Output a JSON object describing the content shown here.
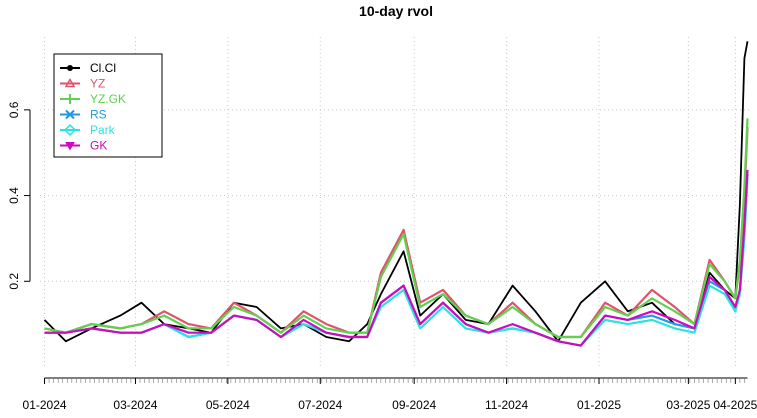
{
  "chart_data": {
    "type": "line",
    "title": "10-day rvol",
    "xlabel": "",
    "ylabel": "",
    "x_range": [
      "2023-12-29",
      "2025-04-12"
    ],
    "ylim": [
      0.0,
      0.77
    ],
    "y_ticks": [
      0.2,
      0.4,
      0.6
    ],
    "y_tick_labels": [
      "0.2",
      "0.4",
      "0.6"
    ],
    "x_ticks": [
      "2024-01-01",
      "2024-03-01",
      "2024-05-01",
      "2024-07-01",
      "2024-09-01",
      "2024-11-01",
      "2025-01-01",
      "2025-03-01",
      "2025-04-01"
    ],
    "x_tick_labels": [
      "01-2024",
      "03-2024",
      "05-2024",
      "07-2024",
      "09-2024",
      "11-2024",
      "01-2025",
      "03-2025",
      "04-2025"
    ],
    "grid": true,
    "legend_position": "top-left",
    "series": [
      {
        "name": "Cl.Cl",
        "color": "#000000",
        "marker": "circle",
        "x": [
          "2024-01-01",
          "2024-01-15",
          "2024-02-01",
          "2024-02-20",
          "2024-03-05",
          "2024-03-20",
          "2024-04-05",
          "2024-04-20",
          "2024-05-05",
          "2024-05-20",
          "2024-06-05",
          "2024-06-20",
          "2024-07-05",
          "2024-07-20",
          "2024-08-01",
          "2024-08-10",
          "2024-08-25",
          "2024-09-05",
          "2024-09-20",
          "2024-10-05",
          "2024-10-20",
          "2024-11-05",
          "2024-11-20",
          "2024-12-05",
          "2024-12-20",
          "2025-01-05",
          "2025-01-20",
          "2025-02-05",
          "2025-02-20",
          "2025-03-05",
          "2025-03-15",
          "2025-03-25",
          "2025-04-01",
          "2025-04-04",
          "2025-04-07",
          "2025-04-09"
        ],
        "y": [
          0.11,
          0.06,
          0.09,
          0.12,
          0.15,
          0.1,
          0.09,
          0.08,
          0.15,
          0.14,
          0.09,
          0.1,
          0.07,
          0.06,
          0.1,
          0.17,
          0.27,
          0.12,
          0.17,
          0.11,
          0.1,
          0.19,
          0.13,
          0.06,
          0.15,
          0.2,
          0.13,
          0.15,
          0.1,
          0.09,
          0.22,
          0.18,
          0.16,
          0.38,
          0.72,
          0.76
        ]
      },
      {
        "name": "YZ",
        "color": "#df536b",
        "marker": "triangle",
        "x": [
          "2024-01-01",
          "2024-01-15",
          "2024-02-01",
          "2024-02-20",
          "2024-03-05",
          "2024-03-20",
          "2024-04-05",
          "2024-04-20",
          "2024-05-05",
          "2024-05-20",
          "2024-06-05",
          "2024-06-20",
          "2024-07-05",
          "2024-07-20",
          "2024-08-01",
          "2024-08-10",
          "2024-08-25",
          "2024-09-05",
          "2024-09-20",
          "2024-10-05",
          "2024-10-20",
          "2024-11-05",
          "2024-11-20",
          "2024-12-05",
          "2024-12-20",
          "2025-01-05",
          "2025-01-20",
          "2025-02-05",
          "2025-02-20",
          "2025-03-05",
          "2025-03-15",
          "2025-03-25",
          "2025-04-01",
          "2025-04-04",
          "2025-04-07",
          "2025-04-09"
        ],
        "y": [
          0.09,
          0.08,
          0.1,
          0.09,
          0.1,
          0.13,
          0.1,
          0.09,
          0.15,
          0.12,
          0.08,
          0.13,
          0.1,
          0.08,
          0.08,
          0.22,
          0.32,
          0.15,
          0.18,
          0.12,
          0.1,
          0.15,
          0.1,
          0.07,
          0.07,
          0.15,
          0.12,
          0.18,
          0.14,
          0.1,
          0.25,
          0.2,
          0.16,
          0.24,
          0.4,
          0.56
        ]
      },
      {
        "name": "YZ.GK",
        "color": "#61d04f",
        "marker": "plus",
        "x": [
          "2024-01-01",
          "2024-01-15",
          "2024-02-01",
          "2024-02-20",
          "2024-03-05",
          "2024-03-20",
          "2024-04-05",
          "2024-04-20",
          "2024-05-05",
          "2024-05-20",
          "2024-06-05",
          "2024-06-20",
          "2024-07-05",
          "2024-07-20",
          "2024-08-01",
          "2024-08-10",
          "2024-08-25",
          "2024-09-05",
          "2024-09-20",
          "2024-10-05",
          "2024-10-20",
          "2024-11-05",
          "2024-11-20",
          "2024-12-05",
          "2024-12-20",
          "2025-01-05",
          "2025-01-20",
          "2025-02-05",
          "2025-02-20",
          "2025-03-05",
          "2025-03-15",
          "2025-03-25",
          "2025-04-01",
          "2025-04-04",
          "2025-04-07",
          "2025-04-09"
        ],
        "y": [
          0.09,
          0.08,
          0.1,
          0.09,
          0.1,
          0.12,
          0.09,
          0.09,
          0.14,
          0.12,
          0.08,
          0.12,
          0.09,
          0.08,
          0.08,
          0.21,
          0.31,
          0.14,
          0.17,
          0.12,
          0.1,
          0.14,
          0.1,
          0.07,
          0.07,
          0.14,
          0.12,
          0.16,
          0.13,
          0.1,
          0.24,
          0.2,
          0.16,
          0.25,
          0.42,
          0.58
        ]
      },
      {
        "name": "RS",
        "color": "#2297e6",
        "marker": "cross",
        "x": [
          "2024-01-01",
          "2024-01-15",
          "2024-02-01",
          "2024-02-20",
          "2024-03-05",
          "2024-03-20",
          "2024-04-05",
          "2024-04-20",
          "2024-05-05",
          "2024-05-20",
          "2024-06-05",
          "2024-06-20",
          "2024-07-05",
          "2024-07-20",
          "2024-08-01",
          "2024-08-10",
          "2024-08-25",
          "2024-09-05",
          "2024-09-20",
          "2024-10-05",
          "2024-10-20",
          "2024-11-05",
          "2024-11-20",
          "2024-12-05",
          "2024-12-20",
          "2025-01-05",
          "2025-01-20",
          "2025-02-05",
          "2025-02-20",
          "2025-03-05",
          "2025-03-15",
          "2025-03-25",
          "2025-04-01",
          "2025-04-04",
          "2025-04-07",
          "2025-04-09"
        ],
        "y": [
          0.08,
          0.08,
          0.09,
          0.08,
          0.08,
          0.1,
          0.07,
          0.08,
          0.12,
          0.11,
          0.07,
          0.1,
          0.08,
          0.07,
          0.07,
          0.15,
          0.19,
          0.1,
          0.15,
          0.1,
          0.08,
          0.09,
          0.08,
          0.06,
          0.05,
          0.12,
          0.11,
          0.12,
          0.1,
          0.09,
          0.2,
          0.18,
          0.13,
          0.18,
          0.32,
          0.45
        ]
      },
      {
        "name": "Park",
        "color": "#28e2e5",
        "marker": "diamond",
        "x": [
          "2024-01-01",
          "2024-01-15",
          "2024-02-01",
          "2024-02-20",
          "2024-03-05",
          "2024-03-20",
          "2024-04-05",
          "2024-04-20",
          "2024-05-05",
          "2024-05-20",
          "2024-06-05",
          "2024-06-20",
          "2024-07-05",
          "2024-07-20",
          "2024-08-01",
          "2024-08-10",
          "2024-08-25",
          "2024-09-05",
          "2024-09-20",
          "2024-10-05",
          "2024-10-20",
          "2024-11-05",
          "2024-11-20",
          "2024-12-05",
          "2024-12-20",
          "2025-01-05",
          "2025-01-20",
          "2025-02-05",
          "2025-02-20",
          "2025-03-05",
          "2025-03-15",
          "2025-03-25",
          "2025-04-01",
          "2025-04-04",
          "2025-04-07",
          "2025-04-09"
        ],
        "y": [
          0.08,
          0.08,
          0.09,
          0.08,
          0.08,
          0.1,
          0.07,
          0.08,
          0.12,
          0.11,
          0.07,
          0.1,
          0.08,
          0.07,
          0.07,
          0.14,
          0.18,
          0.09,
          0.14,
          0.09,
          0.08,
          0.09,
          0.08,
          0.06,
          0.05,
          0.11,
          0.1,
          0.11,
          0.09,
          0.08,
          0.19,
          0.17,
          0.13,
          0.17,
          0.3,
          0.44
        ]
      },
      {
        "name": "GK",
        "color": "#cd0bbc",
        "marker": "triangle-down",
        "x": [
          "2024-01-01",
          "2024-01-15",
          "2024-02-01",
          "2024-02-20",
          "2024-03-05",
          "2024-03-20",
          "2024-04-05",
          "2024-04-20",
          "2024-05-05",
          "2024-05-20",
          "2024-06-05",
          "2024-06-20",
          "2024-07-05",
          "2024-07-20",
          "2024-08-01",
          "2024-08-10",
          "2024-08-25",
          "2024-09-05",
          "2024-09-20",
          "2024-10-05",
          "2024-10-20",
          "2024-11-05",
          "2024-11-20",
          "2024-12-05",
          "2024-12-20",
          "2025-01-05",
          "2025-01-20",
          "2025-02-05",
          "2025-02-20",
          "2025-03-05",
          "2025-03-15",
          "2025-03-25",
          "2025-04-01",
          "2025-04-04",
          "2025-04-07",
          "2025-04-09"
        ],
        "y": [
          0.08,
          0.08,
          0.09,
          0.08,
          0.08,
          0.1,
          0.08,
          0.08,
          0.12,
          0.11,
          0.07,
          0.11,
          0.08,
          0.07,
          0.07,
          0.15,
          0.19,
          0.1,
          0.15,
          0.1,
          0.08,
          0.1,
          0.08,
          0.06,
          0.05,
          0.12,
          0.11,
          0.13,
          0.11,
          0.09,
          0.21,
          0.18,
          0.14,
          0.18,
          0.33,
          0.46
        ]
      }
    ]
  }
}
